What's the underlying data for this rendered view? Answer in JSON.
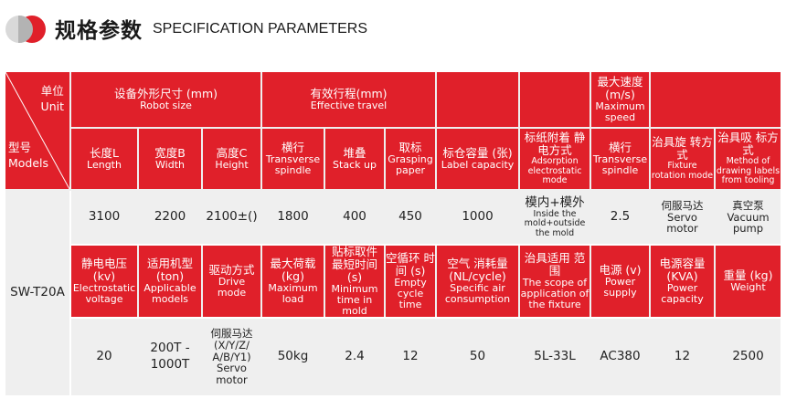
{
  "header": {
    "title_cn": "规格参数",
    "title_en": "SPECIFICATION PARAMETERS"
  },
  "corner": {
    "unit_cn": "单位",
    "unit_en": "Unit",
    "model_cn": "型号",
    "model_en": "Models"
  },
  "groups": {
    "robot_size": {
      "cn": "设备外形尺寸 (mm)",
      "en": "Robot size"
    },
    "travel": {
      "cn": "有效行程(mm)",
      "en": "Effective travel"
    },
    "speed": {
      "cn": "最大速度 (m/s)",
      "en": "Maximum speed"
    }
  },
  "headers1": {
    "length": {
      "cn": "长度L",
      "en": "Length"
    },
    "width": {
      "cn": "宽度B",
      "en": "Width"
    },
    "height": {
      "cn": "高度C",
      "en": "Height"
    },
    "transverse": {
      "cn": "横行",
      "en": "Transverse spindle"
    },
    "stack": {
      "cn": "堆叠",
      "en": "Stack up"
    },
    "grasp": {
      "cn": "取标",
      "en": "Grasping paper"
    },
    "label_cap": {
      "cn": "标仓容量 (张)",
      "en": "Label capacity"
    },
    "adsorption": {
      "cn": "标纸附着 静电方式",
      "en": "Adsorption electrostatic mode"
    },
    "speed_trans": {
      "cn": "横行",
      "en": "Transverse spindle"
    },
    "fixture_rot": {
      "cn": "治具旋 转方式",
      "en": "Fixture rotation mode"
    },
    "drawing": {
      "cn": "治具吸 标方式",
      "en": "Method of drawing labels from tooling"
    }
  },
  "values1": {
    "length": "3100",
    "width": "2200",
    "height": "2100±()",
    "transverse": "1800",
    "stack": "400",
    "grasp": "450",
    "label_cap": "1000",
    "adsorption_cn": "模内+模外",
    "adsorption_en": "Inside the mold+outside the mold",
    "speed": "2.5",
    "fixture_cn": "伺服马达",
    "fixture_en": "Servo motor",
    "drawing_en": "Vacuum pump",
    "drawing_cn": "真空泵"
  },
  "model": "SW-T20A",
  "headers2": {
    "voltage": {
      "cn": "静电电压 (kv)",
      "en": "Electrostatic voltage"
    },
    "models": {
      "cn": "适用机型 (ton)",
      "en": "Applicable models"
    },
    "drive": {
      "cn": "驱动方式",
      "en": "Drive mode"
    },
    "load": {
      "cn": "最大荷载 (kg)",
      "en": "Maximum load"
    },
    "time": {
      "cn": "贴标取件 最短时间 (s)",
      "en": "Minimum time in mold"
    },
    "cycle": {
      "cn": "空循环 时间 (s)",
      "en": "Empty cycle time"
    },
    "air": {
      "cn": "空气 消耗量 (NL/cycle)",
      "en": "Specific air consumption"
    },
    "scope": {
      "cn": "治具适用 范围",
      "en": "The scope of application of the fixture"
    },
    "power": {
      "cn": "电源 (v)",
      "en": "Power supply"
    },
    "capacity": {
      "cn": "电源容量 (KVA)",
      "en": "Power capacity"
    },
    "weight": {
      "cn": "重量 (kg)",
      "en": "Weight"
    }
  },
  "values2": {
    "voltage": "20",
    "models": "200T - 1000T",
    "drive_cn": "伺服马达 (X/Y/Z/ A/B/Y1)",
    "drive_en": "Servo motor",
    "load": "50kg",
    "time": "2.4",
    "cycle": "12",
    "air": "50",
    "scope": "5L-33L",
    "power": "AC380",
    "capacity": "12",
    "weight": "2500"
  },
  "colors": {
    "accent": "#e0202a",
    "light": "#efefef"
  }
}
